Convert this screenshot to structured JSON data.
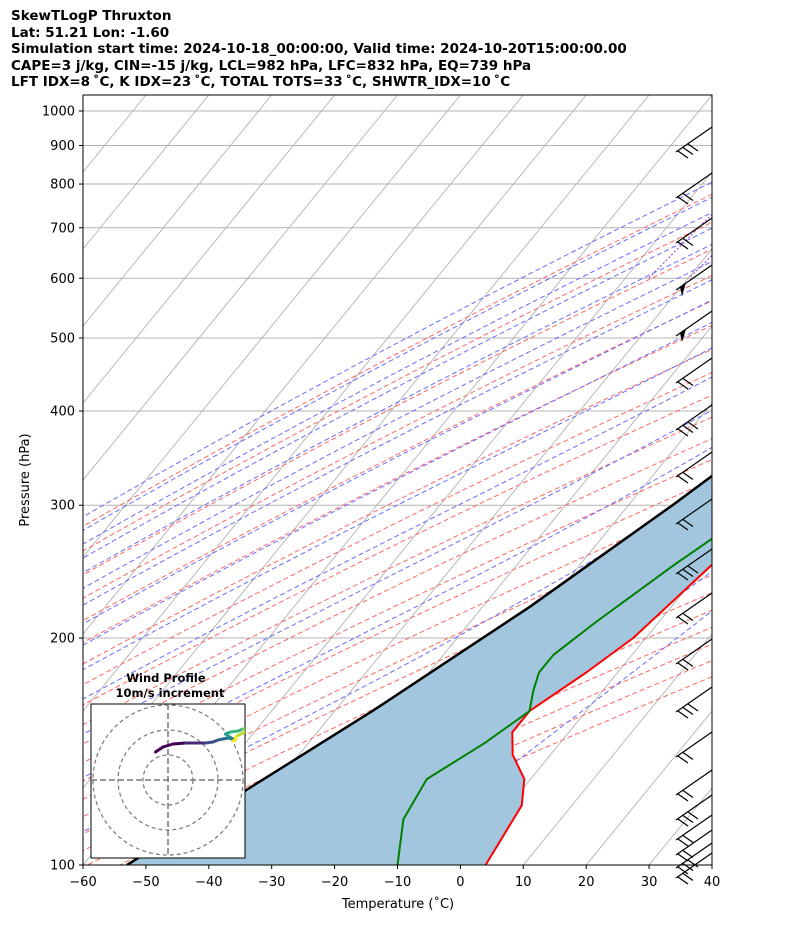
{
  "header": {
    "lines": [
      "SkewTLogP Thruxton",
      "Lat: 51.21   Lon: -1.60",
      "Simulation start time: 2024-10-18_00:00:00, Valid time: 2024-10-20T15:00:00.00",
      "CAPE=3 j/kg, CIN=-15 j/kg, LCL=982 hPa, LFC=832 hPa, EQ=739 hPa",
      "LFT IDX=8 ˚C, K IDX=23 ˚C, TOTAL TOTS=33 ˚C, SHWTR_IDX=10 ˚C"
    ]
  },
  "colors": {
    "temperature": "#ff0000",
    "dewpoint": "#008000",
    "parcel": "#000000",
    "cape_fill": "#a3c6df",
    "dry_adiabat": "#ff6666",
    "moist_adiabat": "#6b6bff",
    "mixing_ratio": "#9933cc",
    "isotherm": "#aaaaaa",
    "isobar": "#b4b4b4"
  },
  "chart_data": [
    {
      "type": "line",
      "subtype": "skew-t log-p",
      "xlabel": "Temperature (˚C)",
      "ylabel": "Pressure (hPa)",
      "xlim": [
        -60,
        40
      ],
      "ylim": [
        1050,
        100
      ],
      "y_scale": "log",
      "x_ticks": [
        -60,
        -50,
        -40,
        -30,
        -20,
        -10,
        0,
        10,
        20,
        30,
        40
      ],
      "x_tick_labels": [
        "−60",
        "−50",
        "−40",
        "−30",
        "−20",
        "−10",
        "0",
        "10",
        "20",
        "30",
        "40"
      ],
      "y_ticks": [
        100,
        200,
        300,
        400,
        500,
        600,
        700,
        800,
        900,
        1000
      ],
      "y_tick_labels": [
        "100",
        "200",
        "300",
        "400",
        "500",
        "600",
        "700",
        "800",
        "900",
        "1000"
      ],
      "grid": true,
      "series": [
        {
          "key": "temperature",
          "x": [
            16.5,
            15.8,
            14.5,
            13.5,
            13.0,
            12.0,
            13.2,
            12.0,
            12.0,
            11.4,
            9.0,
            5.0,
            1.0,
            -2.0,
            -5.0,
            -9.0,
            -9.0,
            -6.0,
            -1.0,
            2.0,
            4.0
          ],
          "y": [
            1000,
            950,
            900,
            850,
            800,
            700,
            650,
            600,
            550,
            500,
            400,
            300,
            250,
            200,
            180,
            160,
            150,
            140,
            130,
            120,
            100
          ]
        },
        {
          "key": "dewpoint",
          "x": [
            16.0,
            13.0,
            10.0,
            9.5,
            11.0,
            11.5,
            10.0,
            5.0,
            2.0,
            1.0,
            4.5,
            1.0,
            -5.0,
            -10.0,
            -12.5,
            -12.5,
            -11.0,
            -9.0,
            -12.0,
            -16.5,
            -15.0,
            -10.0
          ],
          "y": [
            1000,
            920,
            870,
            830,
            780,
            700,
            600,
            520,
            480,
            440,
            380,
            300,
            250,
            210,
            190,
            180,
            170,
            160,
            145,
            130,
            115,
            100
          ]
        },
        {
          "key": "parcel",
          "x": [
            17.0,
            14.5,
            12.0,
            9.5,
            6.0,
            1.0,
            -5.0,
            -13.0,
            -22.5,
            -34.0,
            -44.0,
            -53.0
          ],
          "y": [
            1000,
            900,
            800,
            700,
            600,
            500,
            400,
            300,
            220,
            160,
            125,
            100
          ]
        }
      ]
    },
    {
      "type": "scatter",
      "subtype": "hodograph",
      "title": "Wind Profile",
      "subtitle": "10m/s increment",
      "rings": [
        10,
        20,
        30
      ],
      "points_u_v": [
        [
          -5,
          -12
        ],
        [
          -2,
          -7
        ],
        [
          2,
          -4
        ],
        [
          7,
          -3
        ],
        [
          12,
          -3
        ],
        [
          15,
          -3
        ],
        [
          18,
          -2
        ],
        [
          20,
          0
        ],
        [
          22,
          1
        ],
        [
          24,
          2
        ],
        [
          26,
          1
        ],
        [
          24,
          4
        ],
        [
          23,
          6
        ],
        [
          25,
          8
        ],
        [
          28,
          9
        ],
        [
          30,
          11
        ],
        [
          32,
          11
        ],
        [
          32,
          9
        ],
        [
          29,
          6
        ],
        [
          27,
          3
        ],
        [
          27,
          0
        ],
        [
          26,
          -1
        ]
      ]
    }
  ]
}
